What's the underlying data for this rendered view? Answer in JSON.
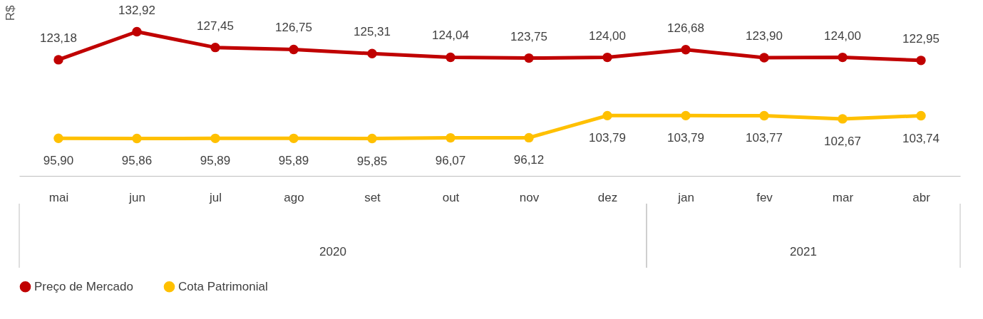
{
  "chart_data": {
    "type": "line",
    "ylabel": "R$",
    "categories": [
      "mai",
      "jun",
      "jul",
      "ago",
      "set",
      "out",
      "nov",
      "dez",
      "jan",
      "fev",
      "mar",
      "abr"
    ],
    "series": [
      {
        "name": "Preço de Mercado",
        "color": "#c00000",
        "values": [
          123.18,
          132.92,
          127.45,
          126.75,
          125.31,
          124.04,
          123.75,
          124.0,
          126.68,
          123.9,
          124.0,
          122.95
        ],
        "value_labels": [
          "123,18",
          "132,92",
          "127,45",
          "126,75",
          "125,31",
          "124,04",
          "123,75",
          "124,00",
          "126,68",
          "123,90",
          "124,00",
          "122,95"
        ]
      },
      {
        "name": "Cota Patrimonial",
        "color": "#ffc000",
        "values": [
          95.9,
          95.86,
          95.89,
          95.89,
          95.85,
          96.07,
          96.12,
          103.79,
          103.79,
          103.77,
          102.67,
          103.74
        ],
        "value_labels": [
          "95,90",
          "95,86",
          "95,89",
          "95,89",
          "95,85",
          "96,07",
          "96,12",
          "103,79",
          "103,79",
          "103,77",
          "102,67",
          "103,74"
        ]
      }
    ],
    "annotations": [
      "2020",
      "2021"
    ],
    "marker": "circle",
    "legend": "bottom",
    "grid": false
  }
}
